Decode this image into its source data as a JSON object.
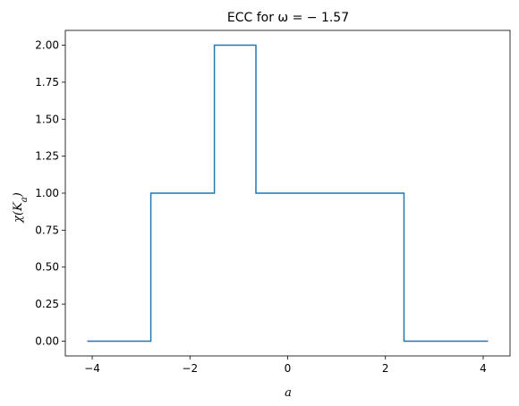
{
  "chart_data": {
    "type": "line",
    "step": true,
    "title": "ECC for ω = − 1.57",
    "xlabel": "a",
    "ylabel": "χ(Ka)",
    "xlim": [
      -4.55,
      4.55
    ],
    "ylim": [
      -0.1,
      2.1
    ],
    "x_ticks": [
      -4,
      -2,
      0,
      2,
      4
    ],
    "y_ticks": [
      0.0,
      0.25,
      0.5,
      0.75,
      1.0,
      1.25,
      1.5,
      1.75,
      2.0
    ],
    "x_tick_labels": [
      "−4",
      "−2",
      "0",
      "2",
      "4"
    ],
    "y_tick_labels": [
      "0.00",
      "0.25",
      "0.50",
      "0.75",
      "1.00",
      "1.25",
      "1.50",
      "1.75",
      "2.00"
    ],
    "grid": false,
    "line_color": "#1f77b4",
    "series": [
      {
        "x": [
          -4.1,
          -2.8,
          -2.8,
          -1.5,
          -1.5,
          -0.65,
          -0.65,
          2.38,
          2.38,
          4.1
        ],
        "y": [
          0,
          0,
          1,
          1,
          2,
          2,
          1,
          1,
          0,
          0
        ]
      }
    ]
  }
}
